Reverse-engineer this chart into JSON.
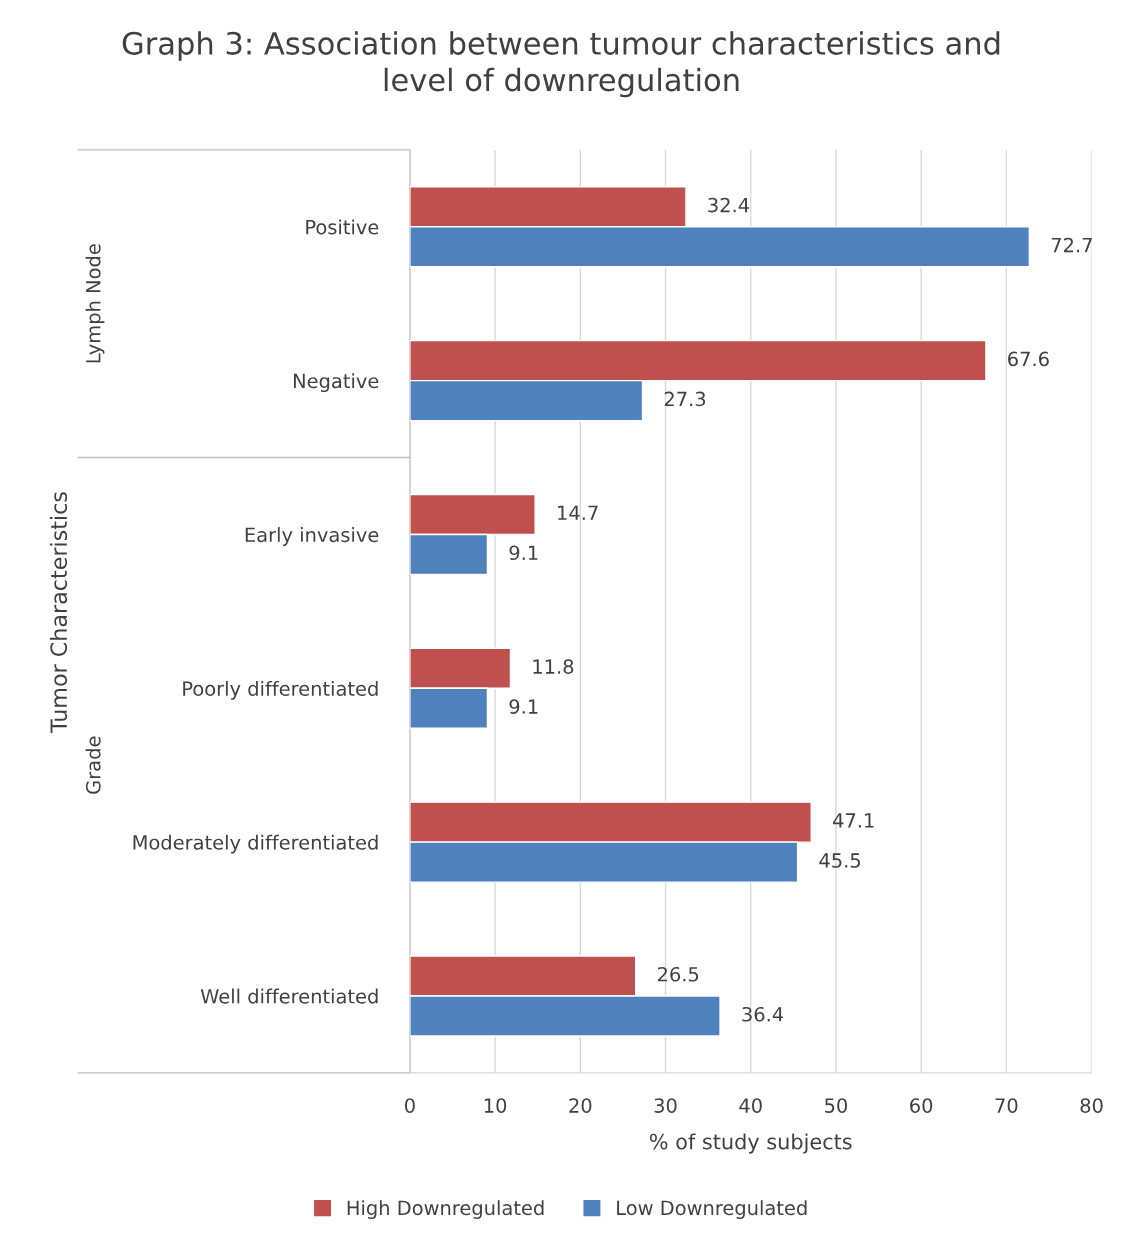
{
  "chart_data": {
    "type": "bar",
    "orientation": "horizontal",
    "title": "Graph 3: Association between tumour characteristics and\nlevel of downregulation",
    "xlabel": "% of study subjects",
    "ylabel": "Tumor Characteristics",
    "categories": [
      "Positive",
      "Negative",
      "Early invasive",
      "Poorly differentiated",
      "Moderately differentiated",
      "Well differentiated"
    ],
    "series": [
      {
        "name": "High Downregulated",
        "color": "#c0504d",
        "values": [
          32.4,
          67.6,
          14.7,
          11.8,
          47.1,
          26.5
        ]
      },
      {
        "name": "Low Downregulated",
        "color": "#4f81bd",
        "values": [
          72.7,
          27.3,
          9.1,
          9.1,
          45.5,
          36.4
        ]
      }
    ],
    "annotations": [
      "Lymph Node",
      "Grade"
    ],
    "xlim": [
      0,
      80
    ],
    "xticks": [
      0,
      10,
      20,
      30,
      40,
      50,
      60,
      70,
      80
    ],
    "grid": "x",
    "legend": "bottom",
    "data_labels": true
  }
}
